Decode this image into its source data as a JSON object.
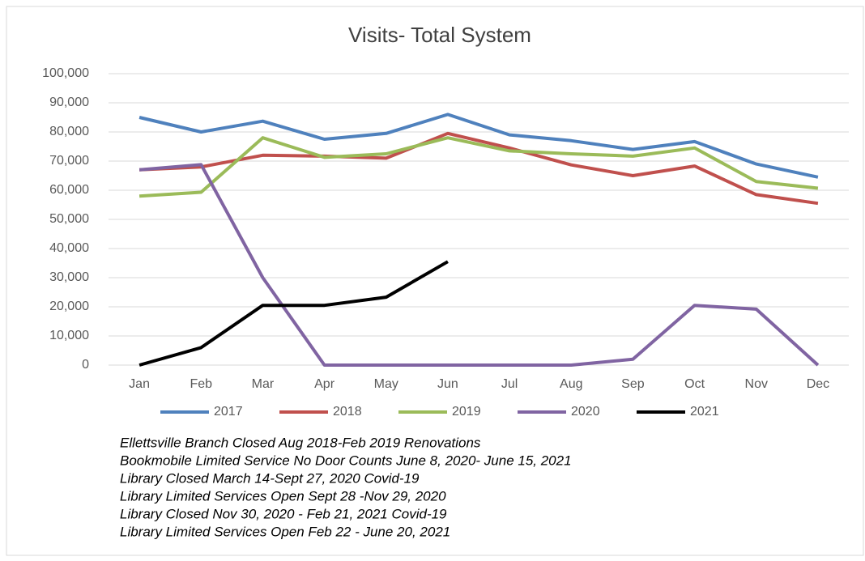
{
  "chart_data": {
    "type": "line",
    "title": "Visits- Total System",
    "categories": [
      "Jan",
      "Feb",
      "Mar",
      "Apr",
      "May",
      "Jun",
      "Jul",
      "Aug",
      "Sep",
      "Oct",
      "Nov",
      "Dec"
    ],
    "series": [
      {
        "name": "2017",
        "color": "#4f81bd",
        "values": [
          85000,
          80000,
          83700,
          77500,
          79500,
          86000,
          79000,
          77000,
          74000,
          76700,
          69000,
          64500
        ]
      },
      {
        "name": "2018",
        "color": "#c0504d",
        "values": [
          67000,
          68000,
          72000,
          71700,
          71000,
          79500,
          74500,
          68700,
          65000,
          68300,
          58500,
          55500
        ]
      },
      {
        "name": "2019",
        "color": "#9bbb59",
        "values": [
          58000,
          59300,
          78000,
          71300,
          72500,
          78000,
          73500,
          72500,
          71700,
          74500,
          63000,
          60700
        ]
      },
      {
        "name": "2020",
        "color": "#8064a2",
        "values": [
          67000,
          68800,
          30000,
          0,
          0,
          0,
          0,
          0,
          2000,
          20500,
          19200,
          0
        ]
      },
      {
        "name": "2021",
        "color": "#000000",
        "values": [
          0,
          6000,
          20500,
          20500,
          23300,
          35500,
          null,
          null,
          null,
          null,
          null,
          null
        ]
      }
    ],
    "ylim": [
      0,
      100000
    ],
    "yticks": [
      0,
      {
        "value": 10000,
        "label": "10,000"
      },
      {
        "value": 20000,
        "label": "20,000"
      },
      {
        "value": 30000,
        "label": "30,000"
      },
      {
        "value": 40000,
        "label": "40,000"
      },
      {
        "value": 50000,
        "label": "50,000"
      },
      {
        "value": 60000,
        "label": "60,000"
      },
      {
        "value": 70000,
        "label": "70,000"
      },
      {
        "value": 80000,
        "label": "80,000"
      },
      {
        "value": 90000,
        "label": "90,000"
      },
      {
        "value": 100000,
        "label": "100,000"
      }
    ],
    "grid": true,
    "legend": "bottom",
    "annotations": [
      "Ellettsville Branch Closed Aug 2018-Feb 2019 Renovations",
      "Bookmobile Limited Service No Door Counts June 8, 2020- June 15, 2021",
      "Library Closed March 14-Sept 27, 2020 Covid-19",
      "Library Limited Services Open Sept 28 -Nov 29, 2020",
      "Library Closed Nov 30, 2020 - Feb 21, 2021 Covid-19",
      "Library Limited Services Open Feb 22 - June 20, 2021"
    ]
  }
}
